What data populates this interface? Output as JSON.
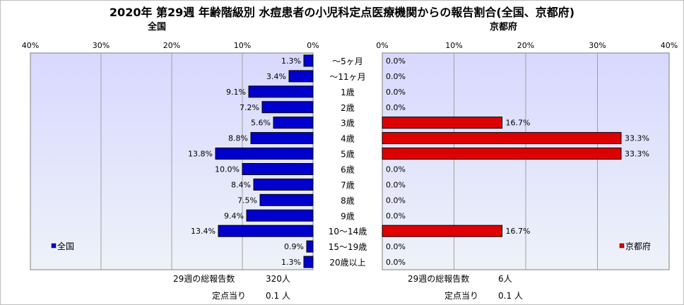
{
  "title": "2020年 第29週 年齢階級別 水痘患者の小児科定点医療機関からの報告割合(全国、京都府)",
  "left_panel": {
    "title": "全国",
    "legend": "全国",
    "footer": {
      "total_label": "29週の総報告数",
      "total_value": "320人",
      "per_label": "定点当り",
      "per_value": "0.1 人"
    }
  },
  "right_panel": {
    "title": "京都府",
    "legend": "京都府",
    "footer": {
      "total_label": "29週の総報告数",
      "total_value": "6人",
      "per_label": "定点当り",
      "per_value": "0.1 人"
    }
  },
  "colors": {
    "national_bar": "#0000cc",
    "kyoto_bar": "#dd0000",
    "plot_bg_top": "#d8d8ff",
    "plot_bg_bottom": "#eef2f8"
  },
  "chart_data": [
    {
      "type": "bar",
      "orientation": "horizontal",
      "direction": "right-to-left",
      "title": "全国",
      "categories": [
        "～5ヶ月",
        "～11ヶ月",
        "1歳",
        "2歳",
        "3歳",
        "4歳",
        "5歳",
        "6歳",
        "7歳",
        "8歳",
        "9歳",
        "10～14歳",
        "15～19歳",
        "20歳以上"
      ],
      "values": [
        1.3,
        3.4,
        9.1,
        7.2,
        5.6,
        8.8,
        13.8,
        10.0,
        8.4,
        7.5,
        9.4,
        13.4,
        0.9,
        1.3
      ],
      "value_labels": [
        "1.3%",
        "3.4%",
        "9.1%",
        "7.2%",
        "5.6%",
        "8.8%",
        "13.8%",
        "10.0%",
        "8.4%",
        "7.5%",
        "9.4%",
        "13.4%",
        "0.9%",
        "1.3%"
      ],
      "xlim": [
        0,
        40
      ],
      "ticks": [
        "0%",
        "10%",
        "20%",
        "30%",
        "40%"
      ],
      "legend": "全国",
      "legend_position": "bottom-left"
    },
    {
      "type": "bar",
      "orientation": "horizontal",
      "title": "京都府",
      "categories": [
        "～5ヶ月",
        "～11ヶ月",
        "1歳",
        "2歳",
        "3歳",
        "4歳",
        "5歳",
        "6歳",
        "7歳",
        "8歳",
        "9歳",
        "10～14歳",
        "15～19歳",
        "20歳以上"
      ],
      "values": [
        0.0,
        0.0,
        0.0,
        0.0,
        16.7,
        33.3,
        33.3,
        0.0,
        0.0,
        0.0,
        0.0,
        16.7,
        0.0,
        0.0
      ],
      "value_labels": [
        "0.0%",
        "0.0%",
        "0.0%",
        "0.0%",
        "16.7%",
        "33.3%",
        "33.3%",
        "0.0%",
        "0.0%",
        "0.0%",
        "0.0%",
        "16.7%",
        "0.0%",
        "0.0%"
      ],
      "xlim": [
        0,
        40
      ],
      "ticks": [
        "0%",
        "10%",
        "20%",
        "30%",
        "40%"
      ],
      "legend": "京都府",
      "legend_position": "bottom-right"
    }
  ]
}
